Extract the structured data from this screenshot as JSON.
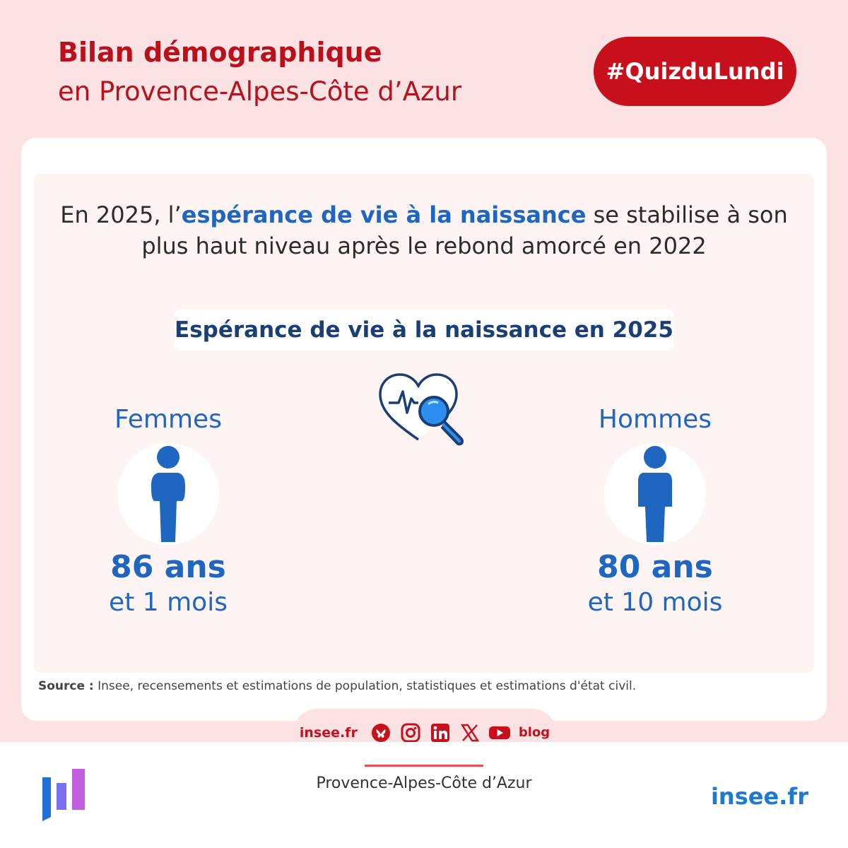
{
  "header": {
    "title": "Bilan démographique",
    "subtitle": "en Provence-Alpes-Côte d’Azur",
    "badge": "#QuizduLundi"
  },
  "intro": {
    "part1": "En 2025, l’",
    "highlight": "espérance de vie à la naissance",
    "part2": " se stabilise à son plus haut niveau après le rebond amorcé en 2022"
  },
  "section_title": "Espérance de vie à la naissance en 2025",
  "women": {
    "label": "Femmes",
    "value": "86 ans",
    "detail": "et 1 mois"
  },
  "men": {
    "label": "Hommes",
    "value": "80 ans",
    "detail": "et 10 mois"
  },
  "source": {
    "label": "Source :",
    "text": " Insee, recensements et estimations de population, statistiques et estimations d'état civil."
  },
  "social": {
    "site": "insee.fr",
    "icons": [
      "bluesky-icon",
      "instagram-icon",
      "linkedin-icon",
      "x-icon",
      "youtube-icon",
      "blog-icon"
    ],
    "blog_label": "blog"
  },
  "footer": {
    "region": "Provence-Alpes-Côte d’Azur",
    "brand": "insee.fr"
  },
  "colors": {
    "brand_red": "#c8101c",
    "accent_blue": "#1f66c1",
    "background": "#fde2e3"
  }
}
